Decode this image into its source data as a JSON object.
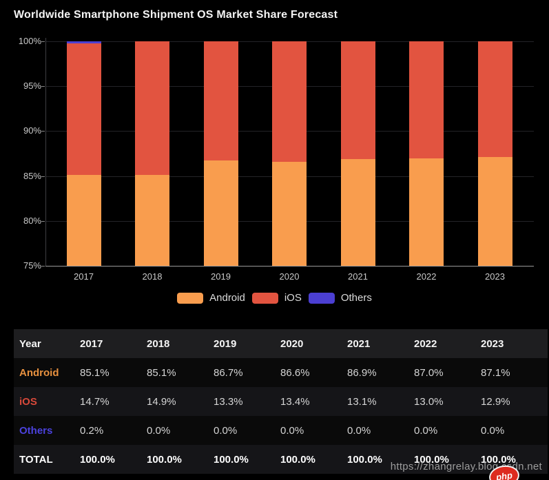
{
  "header": {
    "title": "Worldwide Smartphone Shipment OS Market Share Forecast"
  },
  "chart_data": {
    "type": "bar",
    "stacked": true,
    "title": "Worldwide Smartphone Shipment OS Market Share Forecast",
    "categories": [
      "2017",
      "2018",
      "2019",
      "2020",
      "2021",
      "2022",
      "2023"
    ],
    "series": [
      {
        "name": "Android",
        "color": "#F99D4E",
        "values": [
          85.1,
          85.1,
          86.7,
          86.6,
          86.9,
          87.0,
          87.1
        ]
      },
      {
        "name": "iOS",
        "color": "#E25440",
        "values": [
          14.7,
          14.9,
          13.3,
          13.4,
          13.1,
          13.0,
          12.9
        ]
      },
      {
        "name": "Others",
        "color": "#4B3FD2",
        "values": [
          0.2,
          0.0,
          0.0,
          0.0,
          0.0,
          0.0,
          0.0
        ]
      }
    ],
    "xlabel": "",
    "ylabel": "",
    "ylim": [
      75,
      100
    ],
    "ytick_step": 5,
    "ytick_suffix": "%",
    "grid": true,
    "legend_position": "bottom",
    "legend": [
      "Android",
      "iOS",
      "Others"
    ]
  },
  "table": {
    "header": [
      "Year",
      "2017",
      "2018",
      "2019",
      "2020",
      "2021",
      "2022",
      "2023"
    ],
    "rows": [
      {
        "label": "Android",
        "label_color": "#E8913F",
        "bold": false,
        "values": [
          "85.1%",
          "85.1%",
          "86.7%",
          "86.6%",
          "86.9%",
          "87.0%",
          "87.1%"
        ]
      },
      {
        "label": "iOS",
        "label_color": "#D8493A",
        "bold": false,
        "values": [
          "14.7%",
          "14.9%",
          "13.3%",
          "13.4%",
          "13.1%",
          "13.0%",
          "12.9%"
        ]
      },
      {
        "label": "Others",
        "label_color": "#4B42DD",
        "bold": false,
        "values": [
          "0.2%",
          "0.0%",
          "0.0%",
          "0.0%",
          "0.0%",
          "0.0%",
          "0.0%"
        ]
      },
      {
        "label": "TOTAL",
        "label_color": "#FFFFFF",
        "bold": true,
        "values": [
          "100.0%",
          "100.0%",
          "100.0%",
          "100.0%",
          "100.0%",
          "100.0%",
          "100.0%"
        ]
      }
    ]
  },
  "watermark": {
    "url": "https://zhangrelay.blog.csdn.net",
    "logo_text": "php"
  },
  "colors": {
    "background": "#000000",
    "android": "#F99D4E",
    "ios": "#E25440",
    "others": "#4B3FD2",
    "header_row_bg": "#1E1E20",
    "row_dark_bg": "#0A0A0A",
    "row_alt_bg": "#151518",
    "axis": "#9A9A9A",
    "gridline": "#242428"
  }
}
